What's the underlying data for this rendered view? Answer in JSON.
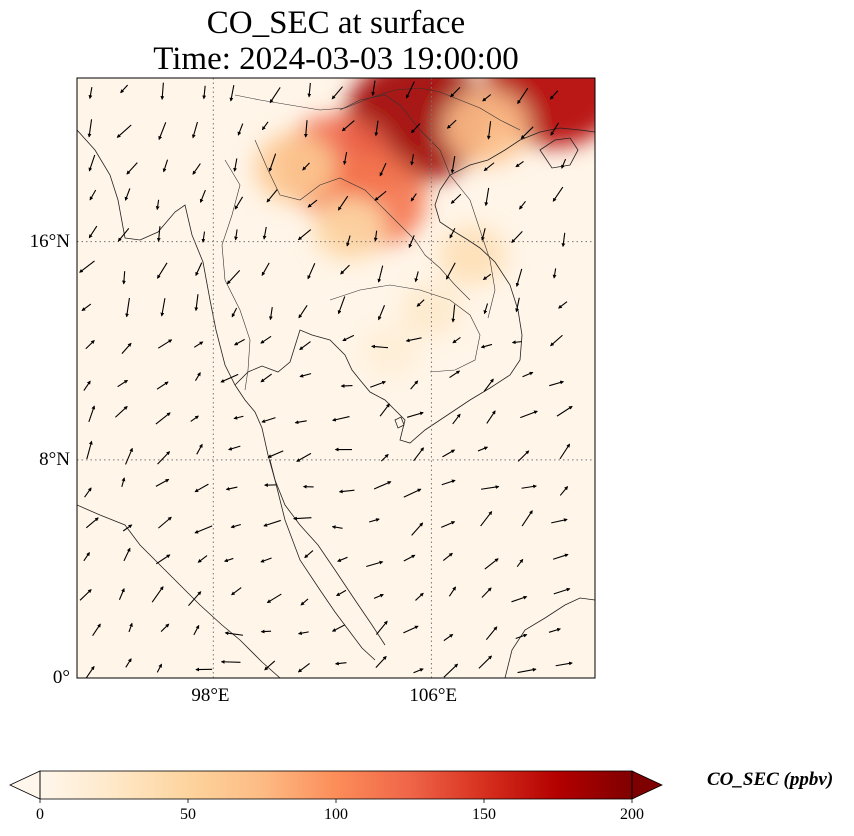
{
  "title": {
    "line1": "CO_SEC at surface",
    "line2": "Time: 2024-03-03 19:00:00"
  },
  "axes": {
    "x_ticks": [
      {
        "value": 98,
        "label": "98°E"
      },
      {
        "value": 106,
        "label": "106°E"
      }
    ],
    "y_ticks": [
      {
        "value": 16,
        "label": "16°N"
      },
      {
        "value": 8,
        "label": "8°N"
      },
      {
        "value": 0,
        "label": "0°"
      }
    ],
    "lon_range": [
      93,
      112
    ],
    "lat_range": [
      0,
      22
    ],
    "gridlines": "dotted"
  },
  "colorbar": {
    "label": "CO_SEC (ppbv)",
    "colormap": "OrRd",
    "range": [
      0,
      200
    ],
    "extend": "both",
    "orientation": "horizontal",
    "ticks": [
      {
        "value": 0,
        "label": "0"
      },
      {
        "value": 50,
        "label": "50"
      },
      {
        "value": 100,
        "label": "100"
      },
      {
        "value": 150,
        "label": "150"
      },
      {
        "value": 200,
        "label": "200"
      }
    ]
  },
  "colors": {
    "background_field": "#fff5e8",
    "coastline": "#222222",
    "wind_arrows": "#000000"
  },
  "plumes": [
    {
      "region": "northern Vietnam / southern China",
      "lon": 105.5,
      "lat": 20.5,
      "value": 185
    },
    {
      "region": "northeast corner",
      "lon": 110.5,
      "lat": 21.7,
      "value": 175
    },
    {
      "region": "northern Laos",
      "lon": 102.5,
      "lat": 18.8,
      "value": 125
    },
    {
      "region": "central Laos",
      "lon": 103.8,
      "lat": 17.5,
      "value": 115
    },
    {
      "region": "northern Thailand",
      "lon": 101.0,
      "lat": 18.7,
      "value": 60
    },
    {
      "region": "northeast Thailand",
      "lon": 103.0,
      "lat": 16.5,
      "value": 45
    },
    {
      "region": "central Vietnam coast",
      "lon": 107.5,
      "lat": 15.5,
      "value": 35
    },
    {
      "region": "southern Laos / Cambodia",
      "lon": 106.0,
      "lat": 13.5,
      "value": 22
    },
    {
      "region": "Cambodia",
      "lon": 104.5,
      "lat": 12.0,
      "value": 15
    },
    {
      "region": "northeast Vietnam",
      "lon": 108.0,
      "lat": 20.2,
      "value": 70
    }
  ],
  "wind_field": {
    "description": "wind vectors",
    "regimes": [
      {
        "region": "north",
        "u": -0.4,
        "v": -0.7
      },
      {
        "region": "gulf",
        "u": -0.7,
        "v": -0.2
      },
      {
        "region": "south_china_sea",
        "u": 0.8,
        "v": 0.5
      },
      {
        "region": "andaman",
        "u": 0.3,
        "v": 0.4
      }
    ]
  }
}
